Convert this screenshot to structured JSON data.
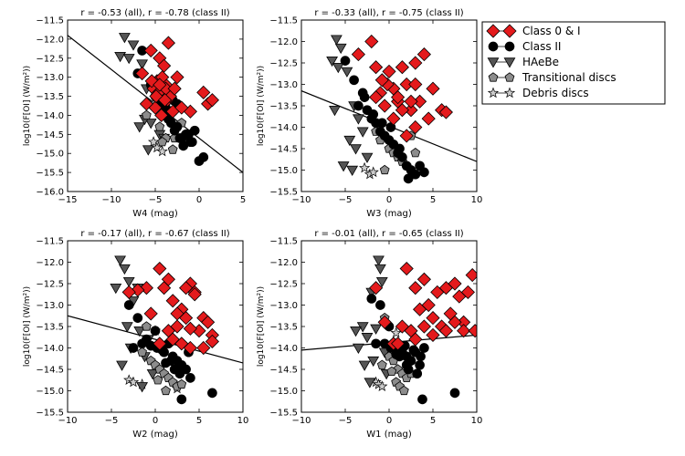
{
  "chart_data": [
    {
      "type": "scatter",
      "title": "r = -0.53 (all), r = -0.78 (class II)",
      "xlabel": "W4 (mag)",
      "ylabel": "log10(F[OI] (W/m²))",
      "xlim": [
        -15,
        5
      ],
      "ylim": [
        -16.0,
        -11.5
      ],
      "xticks": [
        "−15",
        "−10",
        "−5",
        "0",
        "5"
      ],
      "yticks": [
        "−16.0",
        "−15.5",
        "−15.0",
        "−14.5",
        "−14.0",
        "−13.5",
        "−13.0",
        "−12.5",
        "−12.0",
        "−11.5"
      ],
      "fit_line": {
        "x": [
          -15,
          5
        ],
        "y": [
          -11.9,
          -15.5
        ]
      },
      "series": [
        {
          "name": "Class 0 & I",
          "marker": "diamond",
          "color": "#e41a1c",
          "x": [
            -3.5,
            -4.5,
            -5.5,
            -4.0,
            -6.5,
            -2.5,
            -4.8,
            -3.8,
            -5.2,
            -4.6,
            -4.2,
            -3.6,
            -5.0,
            -6.0,
            -3.0,
            -4.3,
            -3.3,
            0.5,
            1.0,
            1.5,
            -1.0,
            -2.0,
            -3.8,
            -4.9,
            -5.4,
            -4.5,
            -3.9,
            -2.8
          ],
          "y": [
            -12.1,
            -12.5,
            -12.3,
            -12.7,
            -12.9,
            -13.0,
            -13.1,
            -13.2,
            -13.3,
            -13.4,
            -13.0,
            -13.6,
            -13.8,
            -13.7,
            -13.9,
            -14.0,
            -13.5,
            -13.4,
            -13.7,
            -13.6,
            -13.9,
            -13.8,
            -13.3,
            -13.5,
            -13.1,
            -13.2,
            -13.6,
            -13.3
          ]
        },
        {
          "name": "Class II",
          "marker": "circle",
          "color": "#000000",
          "x": [
            -6.5,
            -7.0,
            -5.5,
            -5.0,
            -4.5,
            -3.0,
            -3.5,
            -2.5,
            -2.0,
            -1.5,
            -1.0,
            -0.5,
            0.0,
            0.5,
            -4.0,
            -3.8,
            -3.2,
            -2.8,
            -2.2,
            -1.8,
            -1.2,
            -0.8,
            -2.5,
            -3.0
          ],
          "y": [
            -12.3,
            -12.9,
            -13.2,
            -13.5,
            -13.7,
            -13.9,
            -14.1,
            -14.3,
            -14.6,
            -14.5,
            -14.7,
            -14.4,
            -15.2,
            -15.1,
            -14.0,
            -13.8,
            -14.2,
            -14.4,
            -14.6,
            -14.8,
            -14.5,
            -14.7,
            -13.7,
            -13.6
          ]
        },
        {
          "name": "HAeBe",
          "marker": "triangle-down",
          "color": "#555555",
          "x": [
            -8.5,
            -7.5,
            -9.0,
            -8.0,
            -6.5,
            -6.0,
            -5.0,
            -5.5,
            -6.8,
            -4.5,
            -4.0,
            -5.8,
            -6.2,
            -4.8
          ],
          "y": [
            -11.95,
            -12.15,
            -12.45,
            -12.5,
            -12.65,
            -13.3,
            -13.8,
            -14.2,
            -14.3,
            -14.5,
            -14.6,
            -14.9,
            -14.1,
            -13.6
          ]
        },
        {
          "name": "Transitional discs",
          "marker": "pentagon",
          "color": "#8c8c8c",
          "x": [
            -5.0,
            -3.5,
            -2.5,
            -4.5,
            -3.8,
            -2.8,
            -4.2,
            -6.0,
            -3.0,
            -2.0,
            -1.5
          ],
          "y": [
            -13.7,
            -14.0,
            -14.3,
            -14.3,
            -14.6,
            -14.6,
            -14.7,
            -14.0,
            -14.9,
            -14.2,
            -14.5
          ]
        },
        {
          "name": "Debris discs",
          "marker": "star",
          "color": "#cccccc",
          "x": [
            -5.2,
            -4.8,
            -4.2
          ],
          "y": [
            -14.7,
            -14.85,
            -14.95
          ]
        }
      ]
    },
    {
      "type": "scatter",
      "title": "r = -0.33 (all), r = -0.75 (class II)",
      "xlabel": "W3 (mag)",
      "ylabel": "log10(F[OI] (W/m²))",
      "xlim": [
        -10,
        10
      ],
      "ylim": [
        -15.5,
        -11.5
      ],
      "xticks": [
        "−10",
        "−5",
        "0",
        "5",
        "10"
      ],
      "yticks": [
        "−15.5",
        "−15.0",
        "−14.5",
        "−14.0",
        "−13.5",
        "−13.0",
        "−12.5",
        "−12.0",
        "−11.5"
      ],
      "fit_line": {
        "x": [
          -10,
          10
        ],
        "y": [
          -13.15,
          -14.8
        ]
      },
      "series": [
        {
          "name": "Class 0 & I",
          "marker": "diamond",
          "color": "#e41a1c",
          "x": [
            -3.5,
            -2.0,
            -1.5,
            0.0,
            1.5,
            3.0,
            4.0,
            2.0,
            0.5,
            -1.0,
            -0.5,
            1.0,
            2.5,
            3.5,
            5.0,
            6.0,
            6.5,
            4.5,
            3.0,
            2.0,
            1.0,
            -0.2,
            -1.5,
            0.5,
            1.5,
            3.0,
            2.5,
            -0.8
          ],
          "y": [
            -12.3,
            -12.0,
            -12.6,
            -12.7,
            -12.6,
            -12.5,
            -12.3,
            -13.0,
            -13.1,
            -13.2,
            -13.5,
            -13.4,
            -13.6,
            -13.4,
            -13.1,
            -13.6,
            -13.65,
            -13.8,
            -14.0,
            -14.2,
            -13.3,
            -13.0,
            -13.3,
            -13.8,
            -13.6,
            -13.0,
            -13.4,
            -12.9
          ],
          "size": "large"
        },
        {
          "name": "Class II",
          "marker": "circle",
          "color": "#000000",
          "x": [
            -5.0,
            -4.0,
            -3.0,
            -3.5,
            -2.5,
            -2.0,
            -1.5,
            -1.0,
            -0.5,
            0.0,
            0.5,
            1.0,
            1.5,
            2.0,
            2.5,
            3.0,
            3.5,
            4.0,
            -2.8,
            -1.8,
            -0.8,
            0.2,
            1.2,
            2.2
          ],
          "y": [
            -12.45,
            -12.9,
            -13.2,
            -13.5,
            -13.6,
            -13.8,
            -13.9,
            -14.1,
            -14.2,
            -14.3,
            -14.4,
            -14.6,
            -14.7,
            -14.9,
            -15.0,
            -15.1,
            -14.9,
            -15.05,
            -13.3,
            -13.7,
            -13.9,
            -14.0,
            -14.5,
            -15.2
          ]
        },
        {
          "name": "HAeBe",
          "marker": "triangle-down",
          "color": "#555555",
          "x": [
            -6.0,
            -5.5,
            -6.5,
            -5.8,
            -4.8,
            -4.0,
            -3.5,
            -3.0,
            -4.5,
            -3.8,
            -2.5,
            -5.2,
            -4.2,
            -6.2
          ],
          "y": [
            -11.95,
            -12.15,
            -12.45,
            -12.6,
            -12.7,
            -13.5,
            -13.8,
            -14.1,
            -14.3,
            -14.5,
            -14.7,
            -14.9,
            -15.0,
            -13.6
          ]
        },
        {
          "name": "Transitional discs",
          "marker": "pentagon",
          "color": "#8c8c8c",
          "x": [
            -1.5,
            -1.0,
            0.0,
            0.5,
            1.0,
            1.5,
            2.0,
            -0.5,
            2.5,
            3.0
          ],
          "y": [
            -14.1,
            -14.3,
            -14.5,
            -14.6,
            -14.7,
            -14.8,
            -14.9,
            -15.0,
            -14.2,
            -14.6
          ]
        },
        {
          "name": "Debris discs",
          "marker": "star",
          "color": "#cccccc",
          "x": [
            -2.8,
            -2.2,
            -1.8
          ],
          "y": [
            -14.95,
            -15.1,
            -15.05
          ]
        }
      ]
    },
    {
      "type": "scatter",
      "title": "r = -0.17 (all), r = -0.67 (class II)",
      "xlabel": "W2 (mag)",
      "ylabel": "log10(F[OI] (W/m²))",
      "xlim": [
        -10,
        10
      ],
      "ylim": [
        -15.5,
        -11.5
      ],
      "xticks": [
        "−10",
        "−5",
        "0",
        "5",
        "10"
      ],
      "yticks": [
        "−15.5",
        "−15.0",
        "−14.5",
        "−14.0",
        "−13.5",
        "−13.0",
        "−12.5",
        "−12.0",
        "−11.5"
      ],
      "fit_line": {
        "x": [
          -10,
          10
        ],
        "y": [
          -13.25,
          -14.35
        ]
      },
      "series": [
        {
          "name": "Class 0 & I",
          "marker": "diamond",
          "color": "#e41a1c",
          "x": [
            -1.0,
            0.5,
            1.0,
            1.5,
            2.0,
            3.0,
            4.0,
            4.5,
            5.5,
            6.5,
            3.5,
            2.5,
            1.5,
            0.5,
            -0.5,
            2.0,
            3.0,
            4.0,
            5.0,
            6.0,
            4.5,
            3.5,
            2.5,
            5.5,
            -2.0,
            -3.0,
            4.0,
            6.5
          ],
          "y": [
            -12.6,
            -12.15,
            -12.6,
            -12.4,
            -12.9,
            -13.1,
            -12.5,
            -12.7,
            -13.3,
            -13.7,
            -13.3,
            -13.5,
            -13.6,
            -13.9,
            -13.2,
            -13.8,
            -13.9,
            -14.0,
            -13.6,
            -13.4,
            -12.75,
            -12.6,
            -13.2,
            -14.0,
            -12.65,
            -12.7,
            -13.55,
            -13.85
          ]
        },
        {
          "name": "Class II",
          "marker": "circle",
          "color": "#000000",
          "x": [
            -3.0,
            -2.0,
            -1.0,
            0.0,
            0.5,
            1.0,
            1.5,
            2.0,
            2.5,
            3.0,
            3.5,
            4.0,
            -0.5,
            0.8,
            1.8,
            2.8,
            3.8,
            -1.5,
            -2.5,
            1.2,
            2.2,
            0.2,
            6.5,
            3.0
          ],
          "y": [
            -13.0,
            -13.3,
            -13.8,
            -13.6,
            -14.0,
            -14.1,
            -13.9,
            -14.2,
            -14.3,
            -14.4,
            -14.5,
            -14.7,
            -13.95,
            -14.05,
            -14.3,
            -14.6,
            -14.1,
            -13.9,
            -14.0,
            -14.35,
            -14.5,
            -14.0,
            -15.05,
            -15.2
          ]
        },
        {
          "name": "HAeBe",
          "marker": "triangle-down",
          "color": "#555555",
          "x": [
            -4.0,
            -3.5,
            -3.0,
            -4.5,
            -2.0,
            -2.5,
            -3.2,
            -1.8,
            -0.8,
            -2.8,
            -1.2,
            -3.8,
            -0.3,
            -1.5
          ],
          "y": [
            -11.95,
            -12.15,
            -12.45,
            -12.6,
            -12.6,
            -12.9,
            -13.5,
            -13.6,
            -13.8,
            -14.0,
            -14.2,
            -14.4,
            -14.6,
            -14.9
          ]
        },
        {
          "name": "Transitional discs",
          "marker": "pentagon",
          "color": "#8c8c8c",
          "x": [
            -1.0,
            -0.5,
            0.0,
            0.5,
            1.0,
            1.5,
            2.0,
            2.5,
            1.2,
            0.3,
            3.0,
            -1.5
          ],
          "y": [
            -13.5,
            -14.3,
            -14.4,
            -14.5,
            -14.6,
            -14.7,
            -14.8,
            -14.9,
            -15.0,
            -14.75,
            -14.85,
            -14.1
          ]
        },
        {
          "name": "Debris discs",
          "marker": "star",
          "color": "#cccccc",
          "x": [
            -3.0,
            -2.5,
            -1.5,
            0.0,
            2.5
          ],
          "y": [
            -14.75,
            -14.8,
            -14.85,
            -13.6,
            -14.95
          ]
        }
      ]
    },
    {
      "type": "scatter",
      "title": "r = -0.01 (all), r = -0.65 (class II)",
      "xlabel": "W1 (mag)",
      "ylabel": "log10(F[OI] (W/m²))",
      "xlim": [
        -10,
        10
      ],
      "ylim": [
        -15.5,
        -11.5
      ],
      "xticks": [
        "−10",
        "−5",
        "0",
        "5",
        "10"
      ],
      "yticks": [
        "−15.5",
        "−15.0",
        "−14.5",
        "−14.0",
        "−13.5",
        "−13.0",
        "−12.5",
        "−12.0",
        "−11.5"
      ],
      "fit_line": {
        "x": [
          -10,
          10
        ],
        "y": [
          -14.05,
          -13.7
        ]
      },
      "series": [
        {
          "name": "Class 0 & I",
          "marker": "diamond",
          "color": "#e41a1c",
          "x": [
            2.0,
            3.0,
            4.0,
            5.5,
            6.5,
            7.5,
            8.0,
            9.0,
            9.5,
            3.5,
            4.5,
            5.0,
            6.0,
            7.0,
            8.5,
            2.5,
            1.5,
            0.5,
            -0.5,
            3.0,
            4.0,
            5.0,
            6.5,
            7.5,
            8.5,
            9.8,
            1.0,
            -1.5
          ],
          "y": [
            -12.15,
            -12.6,
            -12.4,
            -12.7,
            -12.6,
            -12.5,
            -12.8,
            -12.7,
            -12.3,
            -13.1,
            -13.0,
            -13.3,
            -13.5,
            -13.2,
            -13.4,
            -13.6,
            -13.5,
            -13.9,
            -13.4,
            -13.8,
            -13.5,
            -13.7,
            -13.6,
            -13.4,
            -13.6,
            -13.6,
            -13.9,
            -12.6
          ]
        },
        {
          "name": "Class II",
          "marker": "circle",
          "color": "#000000",
          "x": [
            -2.0,
            -1.0,
            0.0,
            0.5,
            1.0,
            1.5,
            2.0,
            2.5,
            3.0,
            3.5,
            4.0,
            0.2,
            1.2,
            2.2,
            3.2,
            -0.5,
            1.8,
            2.8,
            3.6,
            0.8,
            7.5,
            3.8,
            -1.5,
            2.0
          ],
          "y": [
            -12.85,
            -13.0,
            -13.5,
            -13.9,
            -14.0,
            -14.1,
            -14.2,
            -14.3,
            -14.1,
            -14.4,
            -14.0,
            -14.0,
            -14.2,
            -14.5,
            -14.6,
            -13.9,
            -13.95,
            -14.05,
            -14.2,
            -14.15,
            -15.05,
            -15.2,
            -13.9,
            -14.4
          ]
        },
        {
          "name": "HAeBe",
          "marker": "triangle-down",
          "color": "#555555",
          "x": [
            -1.2,
            -1.0,
            -0.8,
            -2.0,
            -3.0,
            -1.5,
            -2.5,
            -3.5,
            -0.5,
            -1.8,
            -2.8,
            -0.3,
            -3.8,
            -2.2
          ],
          "y": [
            -11.95,
            -12.15,
            -12.45,
            -12.7,
            -13.5,
            -13.55,
            -13.75,
            -14.0,
            -14.1,
            -14.3,
            -14.4,
            -14.6,
            -13.6,
            -14.8
          ]
        },
        {
          "name": "Transitional discs",
          "marker": "pentagon",
          "color": "#8c8c8c",
          "x": [
            -0.5,
            0.0,
            0.5,
            1.0,
            1.5,
            2.0,
            0.8,
            1.2,
            2.5,
            -0.8,
            0.3,
            1.7
          ],
          "y": [
            -13.3,
            -14.2,
            -14.3,
            -14.5,
            -14.6,
            -14.7,
            -14.8,
            -14.9,
            -14.6,
            -14.4,
            -14.55,
            -15.0
          ]
        },
        {
          "name": "Debris discs",
          "marker": "star",
          "color": "#cccccc",
          "x": [
            -1.5,
            -1.2,
            -0.8,
            0.8
          ],
          "y": [
            -14.8,
            -14.85,
            -14.9,
            -13.65
          ]
        }
      ]
    }
  ],
  "legend": {
    "placement": "top-right",
    "items": [
      {
        "label": "Class 0 & I",
        "marker": "diamond",
        "color": "#e41a1c"
      },
      {
        "label": "Class II",
        "marker": "circle",
        "color": "#000000"
      },
      {
        "label": "HAeBe",
        "marker": "triangle-down",
        "color": "#555555"
      },
      {
        "label": "Transitional discs",
        "marker": "pentagon",
        "color": "#8c8c8c"
      },
      {
        "label": "Debris discs",
        "marker": "star",
        "color": "#cccccc"
      }
    ]
  }
}
